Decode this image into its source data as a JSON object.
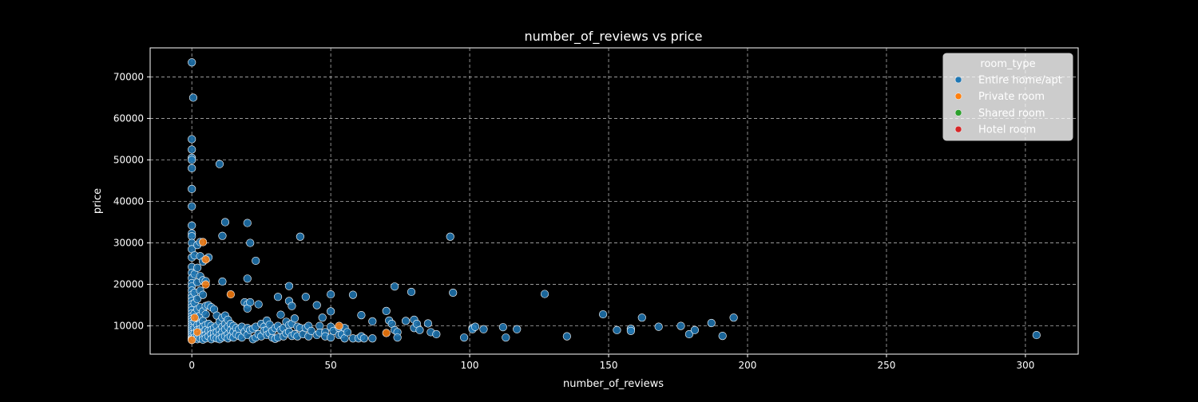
{
  "chart_data": {
    "type": "scatter",
    "title": "number_of_reviews vs price",
    "xlabel": "number_of_reviews",
    "ylabel": "price",
    "xlim": [
      -15,
      319
    ],
    "ylim": [
      3200,
      77000
    ],
    "xticks": [
      0,
      50,
      100,
      150,
      200,
      250,
      300
    ],
    "yticks": [
      10000,
      20000,
      30000,
      40000,
      50000,
      60000,
      70000
    ],
    "grid": true,
    "legend": {
      "title": "room_type",
      "placement": "top-right",
      "entries": [
        {
          "label": "Entire home/apt",
          "color": "#1f77b4"
        },
        {
          "label": "Private room",
          "color": "#ff7f0e"
        },
        {
          "label": "Shared room",
          "color": "#2ca02c"
        },
        {
          "label": "Hotel room",
          "color": "#d62728"
        }
      ]
    },
    "series": [
      {
        "name": "Entire home/apt",
        "color": "#1f77b4",
        "points": [
          [
            0,
            73500
          ],
          [
            0.5,
            65000
          ],
          [
            0,
            55000
          ],
          [
            0,
            52500
          ],
          [
            0,
            50500
          ],
          [
            0,
            50000
          ],
          [
            0,
            48000
          ],
          [
            0,
            43000
          ],
          [
            0,
            38800
          ],
          [
            0,
            34200
          ],
          [
            0,
            32300
          ],
          [
            0,
            31600
          ],
          [
            0,
            30000
          ],
          [
            0,
            28500
          ],
          [
            0,
            26500
          ],
          [
            0,
            24200
          ],
          [
            0,
            22800
          ],
          [
            0,
            21500
          ],
          [
            0,
            20300
          ],
          [
            0,
            19500
          ],
          [
            0,
            18500
          ],
          [
            0,
            17500
          ],
          [
            0,
            16800
          ],
          [
            0,
            16000
          ],
          [
            0,
            15200
          ],
          [
            0,
            14500
          ],
          [
            0,
            13800
          ],
          [
            0,
            13000
          ],
          [
            0,
            12300
          ],
          [
            0,
            11700
          ],
          [
            0,
            11100
          ],
          [
            0,
            10500
          ],
          [
            0,
            10000
          ],
          [
            0,
            9500
          ],
          [
            0,
            9000
          ],
          [
            0,
            8500
          ],
          [
            0,
            8000
          ],
          [
            0,
            7500
          ],
          [
            0,
            7000
          ],
          [
            0,
            6700
          ],
          [
            1,
            27000
          ],
          [
            1,
            22500
          ],
          [
            1,
            18000
          ],
          [
            1,
            15500
          ],
          [
            1,
            13000
          ],
          [
            1,
            11000
          ],
          [
            1,
            9500
          ],
          [
            1,
            8200
          ],
          [
            1,
            7200
          ],
          [
            2,
            29500
          ],
          [
            2,
            24000
          ],
          [
            2,
            20500
          ],
          [
            2,
            16500
          ],
          [
            2,
            14000
          ],
          [
            2,
            12000
          ],
          [
            2,
            10200
          ],
          [
            2,
            9000
          ],
          [
            2,
            7800
          ],
          [
            2,
            6800
          ],
          [
            3,
            30200
          ],
          [
            3,
            26800
          ],
          [
            3,
            22000
          ],
          [
            3,
            18500
          ],
          [
            3,
            14500
          ],
          [
            3,
            12500
          ],
          [
            3,
            10500
          ],
          [
            3,
            9200
          ],
          [
            3,
            8000
          ],
          [
            3,
            7000
          ],
          [
            4,
            25500
          ],
          [
            4,
            21000
          ],
          [
            4,
            17500
          ],
          [
            4,
            13500
          ],
          [
            4,
            11200
          ],
          [
            4,
            9800
          ],
          [
            4,
            8500
          ],
          [
            4,
            7500
          ],
          [
            4,
            6700
          ],
          [
            5,
            20800
          ],
          [
            5,
            14800
          ],
          [
            5,
            12800
          ],
          [
            5,
            10200
          ],
          [
            5,
            9000
          ],
          [
            5,
            7800
          ],
          [
            5,
            7000
          ],
          [
            6,
            26500
          ],
          [
            6,
            15000
          ],
          [
            6,
            10500
          ],
          [
            6,
            8800
          ],
          [
            6,
            7500
          ],
          [
            7,
            14500
          ],
          [
            7,
            10000
          ],
          [
            7,
            9000
          ],
          [
            7,
            8000
          ],
          [
            7,
            6800
          ],
          [
            8,
            14000
          ],
          [
            8,
            9500
          ],
          [
            8,
            8200
          ],
          [
            8,
            7200
          ],
          [
            9,
            12500
          ],
          [
            9,
            10000
          ],
          [
            9,
            8500
          ],
          [
            9,
            7000
          ],
          [
            10,
            49000
          ],
          [
            10,
            11000
          ],
          [
            10,
            9000
          ],
          [
            10,
            7800
          ],
          [
            10,
            6800
          ],
          [
            11,
            31700
          ],
          [
            11,
            20700
          ],
          [
            11,
            12000
          ],
          [
            11,
            9800
          ],
          [
            11,
            8500
          ],
          [
            11,
            7200
          ],
          [
            12,
            35000
          ],
          [
            12,
            12500
          ],
          [
            12,
            10500
          ],
          [
            12,
            9200
          ],
          [
            12,
            7500
          ],
          [
            13,
            11500
          ],
          [
            13,
            9800
          ],
          [
            13,
            8000
          ],
          [
            13,
            7000
          ],
          [
            14,
            10500
          ],
          [
            14,
            9000
          ],
          [
            14,
            7500
          ],
          [
            15,
            10000
          ],
          [
            15,
            8600
          ],
          [
            15,
            7200
          ],
          [
            16,
            9500
          ],
          [
            16,
            8000
          ],
          [
            17,
            9200
          ],
          [
            17,
            7600
          ],
          [
            18,
            7200
          ],
          [
            18,
            9800
          ],
          [
            19,
            15700
          ],
          [
            19,
            8600
          ],
          [
            20,
            34800
          ],
          [
            20,
            21400
          ],
          [
            20,
            15200
          ],
          [
            20,
            14200
          ],
          [
            20,
            9500
          ],
          [
            20,
            7800
          ],
          [
            21,
            30000
          ],
          [
            21,
            15700
          ],
          [
            21,
            9000
          ],
          [
            22,
            9300
          ],
          [
            22,
            6800
          ],
          [
            23,
            25700
          ],
          [
            23,
            9800
          ],
          [
            23,
            7200
          ],
          [
            24,
            15200
          ],
          [
            24,
            8000
          ],
          [
            25,
            10500
          ],
          [
            25,
            7500
          ],
          [
            26,
            9800
          ],
          [
            26,
            8800
          ],
          [
            27,
            11300
          ],
          [
            27,
            9000
          ],
          [
            27,
            7800
          ],
          [
            28,
            10300
          ],
          [
            28,
            8200
          ],
          [
            29,
            7200
          ],
          [
            29,
            8800
          ],
          [
            30,
            6900
          ],
          [
            30,
            9500
          ],
          [
            31,
            17000
          ],
          [
            31,
            10000
          ],
          [
            31,
            7200
          ],
          [
            32,
            12700
          ],
          [
            32,
            9000
          ],
          [
            33,
            9500
          ],
          [
            33,
            7500
          ],
          [
            34,
            11000
          ],
          [
            34,
            8200
          ],
          [
            35,
            19600
          ],
          [
            35,
            16000
          ],
          [
            35,
            10200
          ],
          [
            35,
            8600
          ],
          [
            36,
            14800
          ],
          [
            36,
            10500
          ],
          [
            36,
            7600
          ],
          [
            37,
            11800
          ],
          [
            37,
            8000
          ],
          [
            38,
            9800
          ],
          [
            38,
            7500
          ],
          [
            39,
            31500
          ],
          [
            39,
            9500
          ],
          [
            40,
            8000
          ],
          [
            41,
            17000
          ],
          [
            41,
            9500
          ],
          [
            42,
            10000
          ],
          [
            42,
            7500
          ],
          [
            43,
            8800
          ],
          [
            45,
            15000
          ],
          [
            45,
            7800
          ],
          [
            46,
            10000
          ],
          [
            46,
            8400
          ],
          [
            47,
            12000
          ],
          [
            48,
            8500
          ],
          [
            48,
            7500
          ],
          [
            50,
            17600
          ],
          [
            50,
            13500
          ],
          [
            50,
            9800
          ],
          [
            50,
            7200
          ],
          [
            51,
            8800
          ],
          [
            53,
            9500
          ],
          [
            53,
            7800
          ],
          [
            54,
            8000
          ],
          [
            55,
            9500
          ],
          [
            55,
            7000
          ],
          [
            56,
            8500
          ],
          [
            58,
            17500
          ],
          [
            58,
            7000
          ],
          [
            60,
            7000
          ],
          [
            61,
            12600
          ],
          [
            61,
            7500
          ],
          [
            62,
            7000
          ],
          [
            65,
            11100
          ],
          [
            65,
            7000
          ],
          [
            70,
            13600
          ],
          [
            71,
            11300
          ],
          [
            72,
            10500
          ],
          [
            73,
            19500
          ],
          [
            73,
            9000
          ],
          [
            74,
            8500
          ],
          [
            74,
            7200
          ],
          [
            77,
            11200
          ],
          [
            79,
            18200
          ],
          [
            80,
            11500
          ],
          [
            80,
            9500
          ],
          [
            81,
            10500
          ],
          [
            82,
            9000
          ],
          [
            85,
            10600
          ],
          [
            86,
            8500
          ],
          [
            88,
            8000
          ],
          [
            93,
            31500
          ],
          [
            94,
            18000
          ],
          [
            98,
            7200
          ],
          [
            101,
            9500
          ],
          [
            101,
            9200
          ],
          [
            102,
            9800
          ],
          [
            105,
            9200
          ],
          [
            112,
            9700
          ],
          [
            113,
            7200
          ],
          [
            117,
            9200
          ],
          [
            127,
            17700
          ],
          [
            135,
            7500
          ],
          [
            148,
            12800
          ],
          [
            153,
            9000
          ],
          [
            158,
            9300
          ],
          [
            158,
            8800
          ],
          [
            162,
            12000
          ],
          [
            168,
            9800
          ],
          [
            176,
            10000
          ],
          [
            179,
            8000
          ],
          [
            181,
            9000
          ],
          [
            187,
            10700
          ],
          [
            191,
            7600
          ],
          [
            195,
            12000
          ],
          [
            304,
            7800
          ]
        ]
      },
      {
        "name": "Private room",
        "color": "#ff7f0e",
        "points": [
          [
            4,
            30200
          ],
          [
            5,
            26000
          ],
          [
            5,
            20000
          ],
          [
            14,
            17600
          ],
          [
            53,
            10000
          ],
          [
            70,
            8300
          ],
          [
            0,
            6600
          ],
          [
            1,
            12000
          ],
          [
            2,
            8500
          ]
        ]
      },
      {
        "name": "Shared room",
        "color": "#2ca02c",
        "points": []
      },
      {
        "name": "Hotel room",
        "color": "#d62728",
        "points": []
      }
    ]
  }
}
